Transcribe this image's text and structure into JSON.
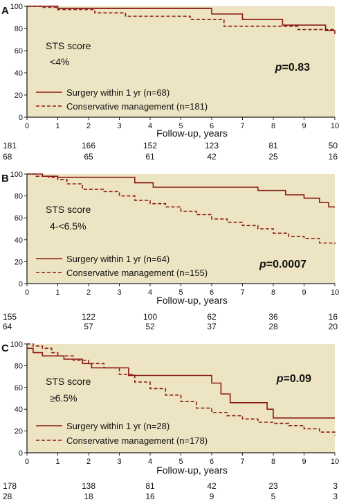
{
  "chart_data": [
    {
      "type": "line",
      "panel_label": "A",
      "annotation_title": "STS score",
      "annotation_sub": "<4%",
      "p_prefix": "p",
      "p_value": "=0.83",
      "xlabel": "Follow-up, years",
      "xlim": [
        0,
        10
      ],
      "ylim": [
        0,
        100
      ],
      "x_ticks": [
        0,
        1,
        2,
        3,
        4,
        5,
        6,
        7,
        8,
        9,
        10
      ],
      "y_ticks": [
        0,
        20,
        40,
        60,
        80,
        100
      ],
      "colors": {
        "line": "#8b1a1a",
        "background": "#ece4c2"
      },
      "series": [
        {
          "name": "Surgery within 1 yr (n=68)",
          "style": "solid",
          "x": [
            0,
            1.0,
            5.5,
            6.0,
            7.0,
            8.3,
            9.7,
            10
          ],
          "y": [
            100,
            98,
            98,
            93,
            88,
            83,
            78,
            75
          ]
        },
        {
          "name": "Conservative management (n=181)",
          "style": "dashed",
          "x": [
            0,
            0.5,
            1.0,
            2.2,
            3.2,
            5.3,
            6.4,
            8.3,
            8.8,
            10
          ],
          "y": [
            100,
            99,
            97,
            94,
            91,
            88,
            82,
            82,
            79,
            78
          ]
        }
      ],
      "risk_table": [
        [
          "181",
          "166",
          "152",
          "123",
          "81",
          "50"
        ],
        [
          "68",
          "65",
          "61",
          "42",
          "25",
          "16"
        ]
      ]
    },
    {
      "type": "line",
      "panel_label": "B",
      "annotation_title": "STS score",
      "annotation_sub": "4-<6.5%",
      "p_prefix": "p",
      "p_value": "=0.0007",
      "xlabel": "Follow-up, years",
      "xlim": [
        0,
        10
      ],
      "ylim": [
        0,
        100
      ],
      "x_ticks": [
        0,
        1,
        2,
        3,
        4,
        5,
        6,
        7,
        8,
        9,
        10
      ],
      "y_ticks": [
        0,
        20,
        40,
        60,
        80,
        100
      ],
      "colors": {
        "line": "#8b1a1a",
        "background": "#ece4c2"
      },
      "series": [
        {
          "name": "Surgery within 1 yr (n=64)",
          "style": "solid",
          "x": [
            0,
            0.5,
            1.0,
            2.6,
            3.5,
            4.1,
            7.0,
            7.5,
            8.4,
            9.0,
            9.5,
            9.8,
            10
          ],
          "y": [
            100,
            98,
            97,
            97,
            92,
            88,
            88,
            85,
            81,
            78,
            74,
            70,
            70
          ]
        },
        {
          "name": "Conservative management (n=155)",
          "style": "dashed",
          "x": [
            0,
            0.3,
            0.7,
            1.0,
            1.3,
            1.8,
            2.5,
            3.0,
            3.5,
            4.0,
            4.5,
            5.0,
            5.5,
            6.0,
            6.5,
            7.0,
            7.5,
            8.0,
            8.5,
            9.0,
            9.5,
            10
          ],
          "y": [
            100,
            98,
            97,
            95,
            91,
            86,
            84,
            80,
            76,
            73,
            70,
            66,
            63,
            59,
            56,
            53,
            50,
            46,
            43,
            41,
            37,
            36
          ]
        }
      ],
      "risk_table": [
        [
          "155",
          "122",
          "100",
          "62",
          "36",
          "16"
        ],
        [
          "64",
          "57",
          "52",
          "37",
          "28",
          "20"
        ]
      ]
    },
    {
      "type": "line",
      "panel_label": "C",
      "annotation_title": "STS score",
      "annotation_sub": "≥6.5%",
      "p_prefix": "p",
      "p_value": "=0.09",
      "xlabel": "Follow-up, years",
      "xlim": [
        0,
        10
      ],
      "ylim": [
        0,
        100
      ],
      "x_ticks": [
        0,
        1,
        2,
        3,
        4,
        5,
        6,
        7,
        8,
        9,
        10
      ],
      "y_ticks": [
        0,
        20,
        40,
        60,
        80,
        100
      ],
      "colors": {
        "line": "#8b1a1a",
        "background": "#ece4c2"
      },
      "series": [
        {
          "name": "Surgery within 1 yr (n=28)",
          "style": "solid",
          "x": [
            0,
            0.2,
            0.5,
            1.2,
            1.8,
            2.1,
            3.3,
            5.8,
            6.0,
            6.3,
            6.6,
            7.5,
            7.8,
            8.0,
            10
          ],
          "y": [
            96,
            92,
            89,
            86,
            82,
            78,
            71,
            71,
            64,
            54,
            46,
            46,
            40,
            32,
            32
          ]
        },
        {
          "name": "Conservative management (n=178)",
          "style": "dashed",
          "x": [
            0,
            0.2,
            0.5,
            0.8,
            1.0,
            1.5,
            2.0,
            2.5,
            3.0,
            3.5,
            4.0,
            4.5,
            5.0,
            5.5,
            6.0,
            6.5,
            7.0,
            7.5,
            8.0,
            8.5,
            9.0,
            9.5,
            10
          ],
          "y": [
            100,
            98,
            96,
            92,
            89,
            85,
            82,
            78,
            72,
            65,
            59,
            53,
            47,
            41,
            37,
            34,
            31,
            28,
            27,
            25,
            22,
            19,
            16
          ]
        }
      ],
      "risk_table": [
        [
          "178",
          "138",
          "81",
          "42",
          "23",
          "3"
        ],
        [
          "28",
          "18",
          "16",
          "9",
          "5",
          "3"
        ]
      ]
    }
  ]
}
